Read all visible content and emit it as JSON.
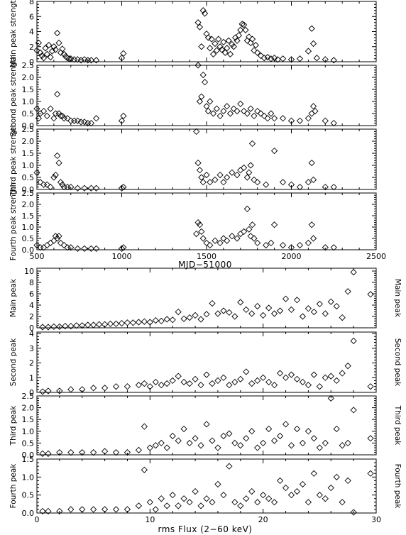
{
  "figure": {
    "top_xlabel": "MJD−51000",
    "bottom_xlabel": "rms Flux    (2−60 keV)"
  },
  "colors": {
    "ink": "#000000",
    "background": "#ffffff"
  },
  "chart_data": [
    {
      "type": "scatter",
      "ylabel": "Main peak strength",
      "xlim": [
        500,
        2500
      ],
      "ylim": [
        0,
        8
      ],
      "xticks": [
        500,
        1000,
        1500,
        2000,
        2500
      ],
      "yticks": [
        0,
        2,
        4,
        6,
        8
      ],
      "marker": "diamond",
      "series": [
        {
          "x": [
            500,
            510,
            520,
            530,
            540,
            550,
            560,
            570,
            580,
            590,
            600,
            610,
            620,
            630,
            640,
            650,
            660,
            670,
            680,
            690,
            700,
            720,
            740,
            760,
            780,
            800,
            820,
            850,
            1000,
            1010,
            1450,
            1460,
            1470,
            1480,
            1490,
            1500,
            1510,
            1520,
            1530,
            1540,
            1550,
            1560,
            1570,
            1580,
            1590,
            1600,
            1610,
            1620,
            1630,
            1640,
            1650,
            1660,
            1670,
            1680,
            1690,
            1700,
            1710,
            1720,
            1730,
            1740,
            1750,
            1760,
            1770,
            1780,
            1790,
            1800,
            1820,
            1840,
            1860,
            1880,
            1900,
            1920,
            1950,
            2000,
            2050,
            2100,
            2120,
            2130,
            2150,
            2200,
            2250
          ],
          "y": [
            1.5,
            2.5,
            1.2,
            0.8,
            0.5,
            1.8,
            1.0,
            2.2,
            0.6,
            1.4,
            2.0,
            1.6,
            3.8,
            2.5,
            1.2,
            1.7,
            1.0,
            0.7,
            0.5,
            0.4,
            0.4,
            0.3,
            0.3,
            0.2,
            0.3,
            0.2,
            0.2,
            0.2,
            0.5,
            1.1,
            5.2,
            4.6,
            2.0,
            6.8,
            6.4,
            3.7,
            3.2,
            1.8,
            3.0,
            1.0,
            2.4,
            1.5,
            3.0,
            2.0,
            1.6,
            2.6,
            1.2,
            1.8,
            2.8,
            1.0,
            2.3,
            2.0,
            3.2,
            2.8,
            3.5,
            4.2,
            5.0,
            4.9,
            4.2,
            2.8,
            3.3,
            2.5,
            3.0,
            1.5,
            2.2,
            1.2,
            0.8,
            0.5,
            0.6,
            0.4,
            0.5,
            0.3,
            0.4,
            0.3,
            0.4,
            1.4,
            4.4,
            2.4,
            0.5,
            0.3,
            0.2
          ]
        }
      ]
    },
    {
      "type": "scatter",
      "ylabel": "Second peak strength",
      "xlim": [
        500,
        2500
      ],
      "ylim": [
        0,
        2.5
      ],
      "xticks": [
        500,
        1000,
        1500,
        2000,
        2500
      ],
      "yticks": [
        0.0,
        0.5,
        1.0,
        1.5,
        2.0,
        2.5
      ],
      "marker": "diamond",
      "series": [
        {
          "x": [
            500,
            510,
            520,
            540,
            560,
            580,
            600,
            610,
            620,
            630,
            640,
            650,
            660,
            680,
            700,
            720,
            740,
            760,
            780,
            800,
            820,
            850,
            1000,
            1010,
            1450,
            1460,
            1470,
            1480,
            1490,
            1500,
            1510,
            1520,
            1540,
            1560,
            1580,
            1600,
            1620,
            1640,
            1660,
            1680,
            1700,
            1720,
            1740,
            1760,
            1780,
            1800,
            1820,
            1840,
            1860,
            1880,
            1900,
            1950,
            2000,
            2050,
            2100,
            2120,
            2130,
            2140,
            2200,
            2250
          ],
          "y": [
            0.7,
            0.3,
            0.5,
            0.6,
            0.4,
            0.7,
            0.3,
            0.5,
            1.3,
            0.5,
            0.4,
            0.4,
            0.3,
            0.3,
            0.2,
            0.2,
            0.2,
            0.15,
            0.15,
            0.1,
            0.1,
            0.3,
            0.2,
            0.4,
            2.5,
            1.0,
            1.2,
            2.1,
            1.8,
            0.8,
            0.6,
            1.0,
            0.5,
            0.7,
            0.4,
            0.6,
            0.8,
            0.5,
            0.7,
            0.6,
            0.9,
            0.6,
            0.5,
            0.7,
            0.4,
            0.6,
            0.5,
            0.4,
            0.3,
            0.5,
            0.3,
            0.3,
            0.2,
            0.2,
            0.3,
            0.5,
            0.8,
            0.6,
            0.2,
            0.1
          ]
        }
      ]
    },
    {
      "type": "scatter",
      "ylabel": "Third peak strength",
      "xlim": [
        500,
        2500
      ],
      "ylim": [
        0,
        2.5
      ],
      "xticks": [
        500,
        1000,
        1500,
        2000,
        2500
      ],
      "yticks": [
        0.0,
        0.5,
        1.0,
        1.5,
        2.0,
        2.5
      ],
      "marker": "diamond",
      "series": [
        {
          "x": [
            500,
            520,
            540,
            560,
            580,
            600,
            610,
            620,
            630,
            640,
            650,
            660,
            680,
            700,
            740,
            780,
            820,
            850,
            1000,
            1010,
            1440,
            1450,
            1460,
            1470,
            1480,
            1500,
            1520,
            1550,
            1580,
            1600,
            1620,
            1650,
            1680,
            1700,
            1720,
            1740,
            1750,
            1760,
            1770,
            1780,
            1800,
            1850,
            1900,
            1950,
            2000,
            2050,
            2100,
            2120,
            2130,
            2200,
            2250
          ],
          "y": [
            0.7,
            0.3,
            0.2,
            0.2,
            0.1,
            0.5,
            0.6,
            1.4,
            1.1,
            0.3,
            0.2,
            0.1,
            0.1,
            0.1,
            0.05,
            0.05,
            0.05,
            0.05,
            0.05,
            0.1,
            2.4,
            1.1,
            0.8,
            0.5,
            0.3,
            0.6,
            0.3,
            0.4,
            0.6,
            0.3,
            0.5,
            0.7,
            0.6,
            0.8,
            0.9,
            0.5,
            0.7,
            1.0,
            1.9,
            0.4,
            0.3,
            0.2,
            1.6,
            0.3,
            0.2,
            0.1,
            0.3,
            1.1,
            0.4,
            0.1,
            0.1
          ]
        }
      ]
    },
    {
      "type": "scatter",
      "ylabel": "Fourth peak strength",
      "xlim": [
        500,
        2500
      ],
      "ylim": [
        0,
        2.5
      ],
      "xticks": [
        500,
        1000,
        1500,
        2000,
        2500
      ],
      "yticks": [
        0.0,
        0.5,
        1.0,
        1.5,
        2.0,
        2.5
      ],
      "marker": "diamond",
      "series": [
        {
          "x": [
            500,
            520,
            540,
            560,
            580,
            600,
            610,
            620,
            630,
            640,
            660,
            680,
            700,
            740,
            780,
            820,
            850,
            1000,
            1010,
            1440,
            1450,
            1460,
            1470,
            1480,
            1500,
            1520,
            1550,
            1580,
            1600,
            1620,
            1650,
            1680,
            1700,
            1720,
            1740,
            1750,
            1760,
            1770,
            1780,
            1800,
            1850,
            1880,
            1900,
            1950,
            2000,
            2050,
            2100,
            2120,
            2130,
            2200,
            2250
          ],
          "y": [
            0.2,
            0.1,
            0.1,
            0.2,
            0.3,
            0.4,
            0.6,
            0.5,
            0.6,
            0.3,
            0.2,
            0.1,
            0.1,
            0.05,
            0.05,
            0.05,
            0.05,
            0.05,
            0.1,
            0.7,
            1.2,
            1.1,
            0.8,
            0.5,
            0.3,
            0.2,
            0.4,
            0.3,
            0.5,
            0.4,
            0.6,
            0.5,
            0.7,
            0.8,
            1.8,
            0.9,
            0.6,
            1.1,
            0.5,
            0.3,
            0.2,
            0.3,
            1.1,
            0.2,
            0.1,
            0.2,
            0.3,
            1.1,
            0.5,
            0.1,
            0.1
          ]
        }
      ]
    },
    {
      "type": "scatter",
      "ylabel": "Main peak",
      "xlim": [
        0,
        30
      ],
      "ylim": [
        0,
        10.5
      ],
      "xticks": [
        0,
        10,
        20,
        30
      ],
      "yticks": [
        0,
        2,
        4,
        6,
        8,
        10
      ],
      "marker": "diamond",
      "series": [
        {
          "x": [
            0.5,
            1,
            1.5,
            2,
            2.5,
            3,
            3.5,
            4,
            4.5,
            5,
            5.5,
            6,
            6.5,
            7,
            7.5,
            8,
            8.5,
            9,
            9.5,
            10,
            10.5,
            11,
            11.5,
            12,
            12.5,
            13,
            13.5,
            14,
            14.5,
            15,
            15.5,
            16,
            16.5,
            17,
            17.5,
            18,
            18.5,
            19,
            19.5,
            20,
            20.5,
            21,
            21.5,
            22,
            22.5,
            23,
            23.5,
            24,
            24.5,
            25,
            25.5,
            26,
            26.5,
            27,
            27.5,
            28,
            29.5
          ],
          "y": [
            0.1,
            0.1,
            0.2,
            0.2,
            0.3,
            0.3,
            0.4,
            0.4,
            0.5,
            0.5,
            0.6,
            0.6,
            0.7,
            0.7,
            0.8,
            0.9,
            0.9,
            1.0,
            1.1,
            1.0,
            1.3,
            1.2,
            1.5,
            1.4,
            2.8,
            1.6,
            1.8,
            2.2,
            1.5,
            2.4,
            4.3,
            2.5,
            3.0,
            2.7,
            2.0,
            4.5,
            3.2,
            2.5,
            3.8,
            2.2,
            3.5,
            2.5,
            3.0,
            5.1,
            3.2,
            4.9,
            2.0,
            3.4,
            2.8,
            4.2,
            2.5,
            4.6,
            3.8,
            1.8,
            6.4,
            9.8,
            5.9
          ]
        }
      ]
    },
    {
      "type": "scatter",
      "ylabel": "Second peak",
      "xlim": [
        0,
        30
      ],
      "ylim": [
        0,
        4.1
      ],
      "xticks": [
        0,
        10,
        20,
        30
      ],
      "yticks": [
        0,
        1,
        2,
        3,
        4
      ],
      "marker": "diamond",
      "series": [
        {
          "x": [
            0.5,
            1,
            2,
            3,
            4,
            5,
            6,
            7,
            8,
            9,
            9.5,
            10,
            10.5,
            11,
            11.5,
            12,
            12.5,
            13,
            13.5,
            14,
            14.5,
            15,
            15.5,
            16,
            16.5,
            17,
            17.5,
            18,
            18.5,
            19,
            19.5,
            20,
            20.5,
            21,
            21.5,
            22,
            22.5,
            23,
            23.5,
            24,
            24.5,
            25,
            25.5,
            26,
            26.5,
            27,
            27.5,
            28,
            29.5
          ],
          "y": [
            0.05,
            0.1,
            0.1,
            0.2,
            0.2,
            0.3,
            0.3,
            0.4,
            0.4,
            0.5,
            0.6,
            0.4,
            0.7,
            0.5,
            0.6,
            0.8,
            1.1,
            0.7,
            0.6,
            0.9,
            0.5,
            1.2,
            0.6,
            0.8,
            1.0,
            0.5,
            0.7,
            0.9,
            1.4,
            0.6,
            0.8,
            1.0,
            0.7,
            0.5,
            1.3,
            1.0,
            1.2,
            0.9,
            0.7,
            0.5,
            1.2,
            0.4,
            1.0,
            1.1,
            0.8,
            1.3,
            1.8,
            3.5,
            0.4
          ]
        }
      ]
    },
    {
      "type": "scatter",
      "ylabel": "Third peak",
      "xlim": [
        0,
        30
      ],
      "ylim": [
        0,
        2.5
      ],
      "xticks": [
        0,
        10,
        20,
        30
      ],
      "yticks": [
        0.0,
        0.5,
        1.0,
        1.5,
        2.0,
        2.5
      ],
      "marker": "diamond",
      "series": [
        {
          "x": [
            0.5,
            1,
            2,
            3,
            4,
            5,
            6,
            7,
            8,
            9,
            9.5,
            10,
            10.5,
            11,
            11.5,
            12,
            12.5,
            13,
            13.5,
            14,
            14.5,
            15,
            15.5,
            16,
            16.5,
            17,
            17.5,
            18,
            18.5,
            19,
            19.5,
            20,
            20.5,
            21,
            21.5,
            22,
            22.5,
            23,
            23.5,
            24,
            24.5,
            25,
            25.5,
            26,
            26.5,
            27,
            27.5,
            28,
            29.5
          ],
          "y": [
            0.05,
            0.05,
            0.1,
            0.1,
            0.1,
            0.1,
            0.15,
            0.1,
            0.1,
            0.2,
            1.2,
            0.3,
            0.4,
            0.5,
            0.3,
            0.8,
            0.6,
            1.1,
            0.5,
            0.7,
            0.4,
            1.3,
            0.6,
            0.3,
            0.8,
            0.9,
            0.5,
            0.4,
            0.7,
            1.0,
            0.3,
            0.5,
            1.1,
            0.6,
            0.8,
            1.3,
            0.4,
            1.1,
            0.5,
            1.0,
            0.7,
            0.3,
            0.5,
            2.4,
            1.1,
            0.4,
            0.5,
            1.9,
            0.7
          ]
        }
      ]
    },
    {
      "type": "scatter",
      "ylabel": "Fourth peak",
      "xlim": [
        0,
        30
      ],
      "ylim": [
        0,
        1.5
      ],
      "xticks": [
        0,
        10,
        20,
        30
      ],
      "yticks": [
        0.0,
        0.5,
        1.0,
        1.5
      ],
      "marker": "diamond",
      "series": [
        {
          "x": [
            0.5,
            1,
            2,
            3,
            4,
            5,
            6,
            7,
            8,
            9,
            9.5,
            10,
            10.5,
            11,
            11.5,
            12,
            12.5,
            13,
            13.5,
            14,
            14.5,
            15,
            15.5,
            16,
            16.5,
            17,
            17.5,
            18,
            18.5,
            19,
            19.5,
            20,
            20.5,
            21,
            21.5,
            22,
            22.5,
            23,
            23.5,
            24,
            24.5,
            25,
            25.5,
            26,
            26.5,
            27,
            27.5,
            28,
            29.5
          ],
          "y": [
            0.05,
            0.05,
            0.05,
            0.1,
            0.1,
            0.1,
            0.1,
            0.1,
            0.1,
            0.2,
            1.2,
            0.3,
            0.1,
            0.4,
            0.2,
            0.5,
            0.2,
            0.4,
            0.3,
            0.6,
            0.2,
            0.4,
            0.3,
            0.8,
            0.5,
            1.3,
            0.3,
            0.2,
            0.4,
            0.6,
            0.3,
            0.5,
            0.4,
            0.3,
            0.9,
            0.7,
            0.5,
            0.6,
            0.8,
            0.3,
            1.1,
            0.5,
            0.4,
            0.7,
            1.0,
            0.3,
            0.9,
            0.02,
            1.1
          ]
        }
      ]
    }
  ]
}
